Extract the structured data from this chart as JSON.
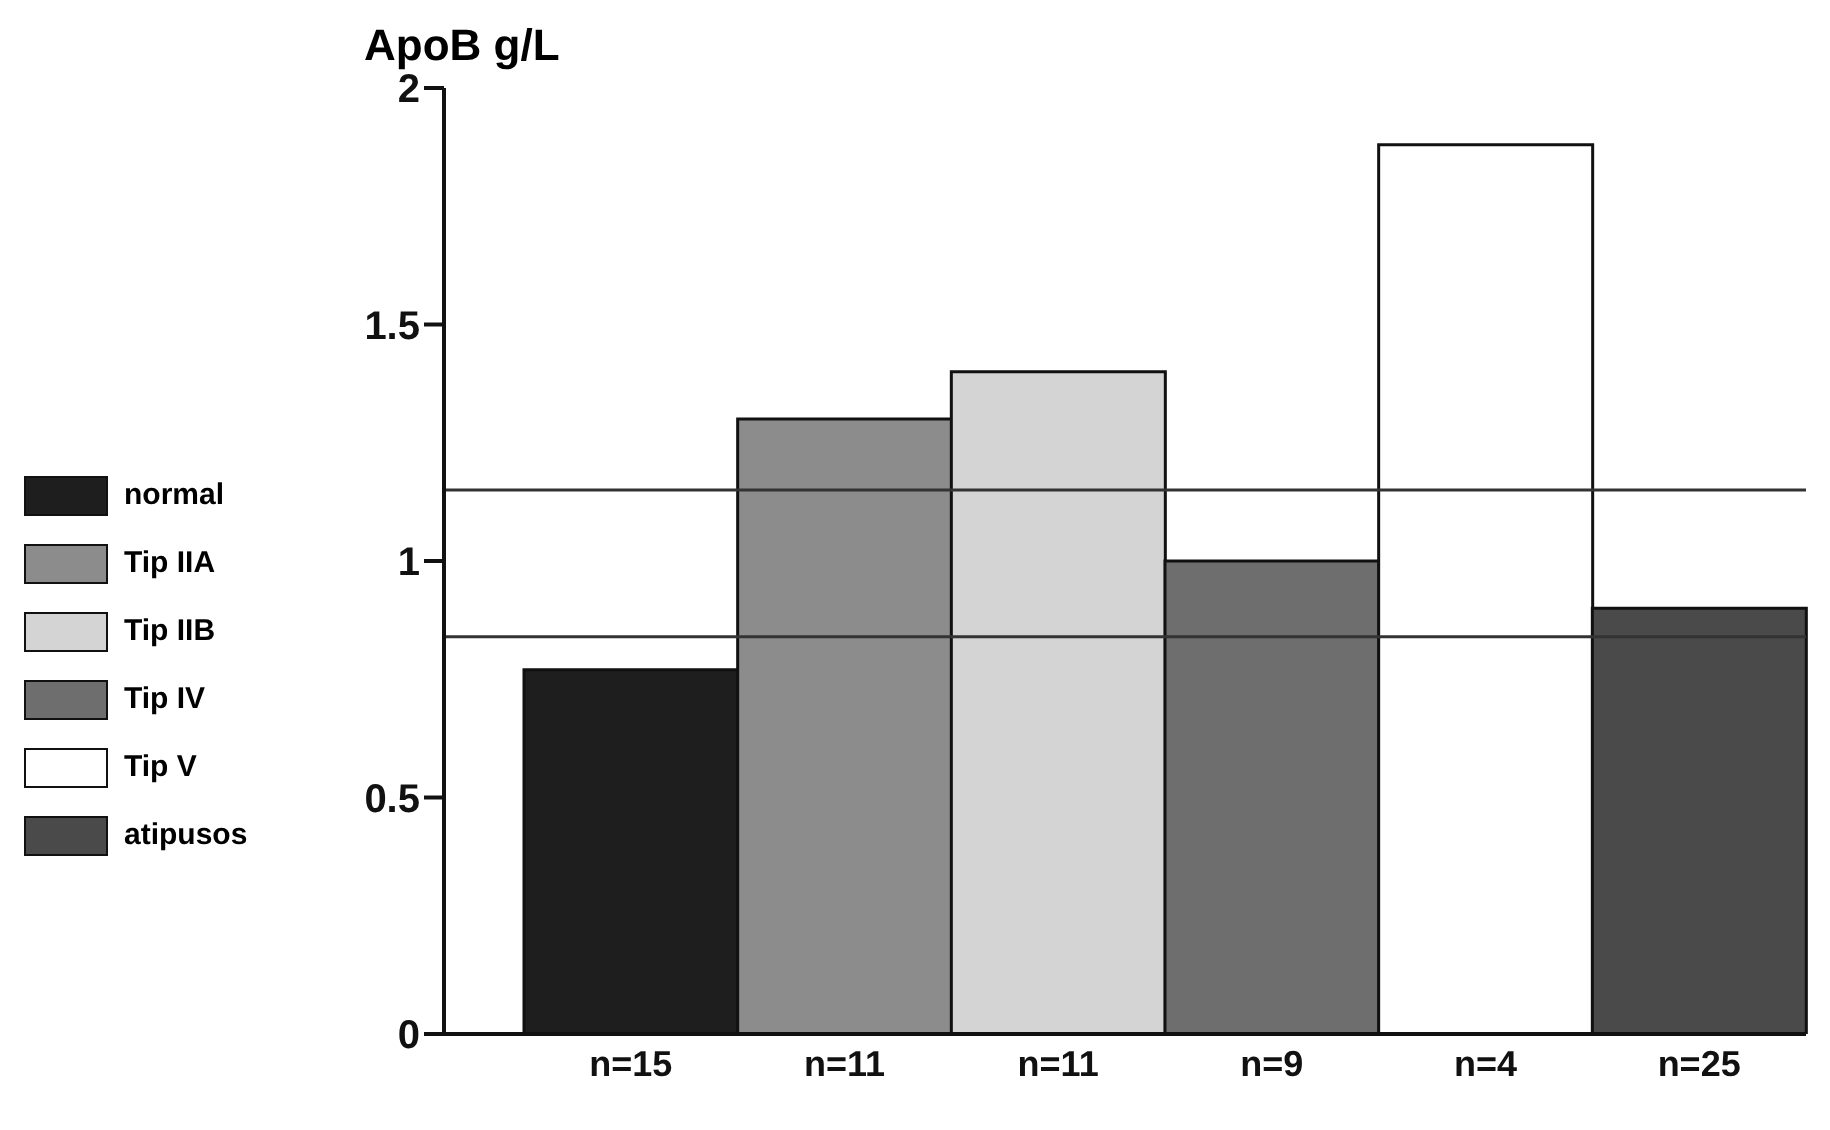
{
  "chart_data": {
    "type": "bar",
    "ylabel": "ApoB g/L",
    "categories": [
      "n=15",
      "n=11",
      "n=11",
      "n=9",
      "n=4",
      "n=25"
    ],
    "series": [
      {
        "name": "normal",
        "color": "#1e1e1e",
        "values": [
          0.77,
          null,
          null,
          null,
          null,
          null
        ]
      },
      {
        "name": "Tip IIA",
        "color": "#8c8c8c",
        "values": [
          null,
          1.3,
          null,
          null,
          null,
          null
        ]
      },
      {
        "name": "Tip IIB",
        "color": "#d4d4d4",
        "values": [
          null,
          null,
          1.4,
          null,
          null,
          null
        ]
      },
      {
        "name": "Tip IV",
        "color": "#6e6e6e",
        "values": [
          null,
          null,
          null,
          1.0,
          null,
          null
        ]
      },
      {
        "name": "Tip V",
        "color": "#ffffff",
        "values": [
          null,
          null,
          null,
          null,
          1.88,
          null
        ]
      },
      {
        "name": "atipusos",
        "color": "#4a4a4a",
        "values": [
          null,
          null,
          null,
          null,
          null,
          0.9
        ]
      }
    ],
    "stacked": true,
    "ylim": [
      0,
      2
    ],
    "yticks": [
      0,
      0.5,
      1,
      1.5,
      2
    ],
    "grid": false,
    "legend": "left",
    "ref_lines": [
      {
        "axis": "y",
        "value": 1.15,
        "color": "#333333"
      },
      {
        "axis": "y",
        "value": 0.84,
        "color": "#333333"
      }
    ]
  }
}
